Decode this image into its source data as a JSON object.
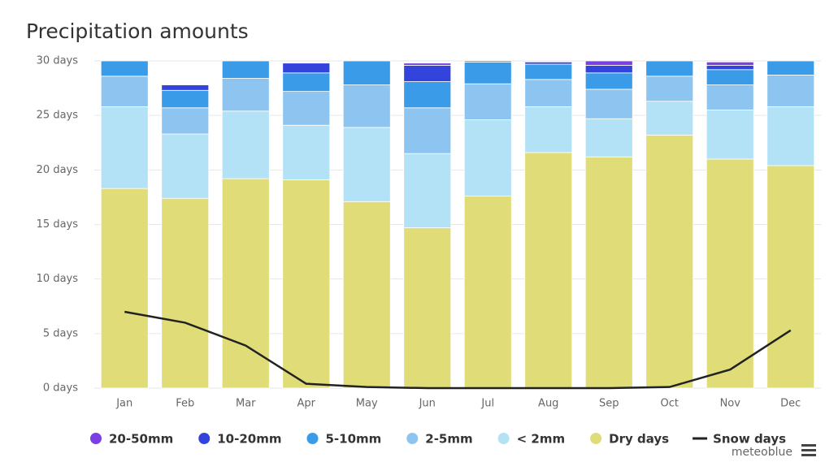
{
  "chart_data": {
    "type": "bar",
    "stacked": true,
    "title": "Precipitation amounts",
    "categories": [
      "Jan",
      "Feb",
      "Mar",
      "Apr",
      "May",
      "Jun",
      "Jul",
      "Aug",
      "Sep",
      "Oct",
      "Nov",
      "Dec"
    ],
    "series": [
      {
        "name": "20-50mm",
        "color": "#7b3fe4",
        "values": [
          0,
          0,
          0,
          0,
          0,
          0.2,
          0,
          0,
          0.4,
          0,
          0.3,
          0
        ]
      },
      {
        "name": "10-20mm",
        "color": "#3344dd",
        "values": [
          0,
          0.5,
          0,
          0.9,
          0,
          1.5,
          0.1,
          0.2,
          0.7,
          0,
          0.4,
          0
        ]
      },
      {
        "name": "5-10mm",
        "color": "#3a9be8",
        "values": [
          1.4,
          1.6,
          1.6,
          1.7,
          2.2,
          2.4,
          2.0,
          1.4,
          1.5,
          1.4,
          1.4,
          1.3
        ]
      },
      {
        "name": "2-5mm",
        "color": "#8ec5f0",
        "values": [
          2.8,
          2.4,
          3.0,
          3.1,
          3.9,
          4.2,
          3.3,
          2.5,
          2.7,
          2.3,
          2.3,
          2.9
        ]
      },
      {
        "name": "< 2mm",
        "color": "#b3e2f7",
        "values": [
          7.5,
          5.9,
          6.2,
          5.0,
          6.8,
          6.8,
          7.0,
          4.2,
          3.5,
          3.1,
          4.5,
          5.4
        ]
      },
      {
        "name": "Dry days",
        "color": "#e0dc78",
        "values": [
          18.3,
          17.4,
          19.2,
          19.1,
          17.1,
          14.7,
          17.6,
          21.6,
          21.2,
          23.2,
          21.0,
          20.4
        ]
      },
      {
        "name": "Snow days",
        "type": "line",
        "color": "#222222",
        "values": [
          7.0,
          6.0,
          3.9,
          0.4,
          0.1,
          0,
          0,
          0,
          0,
          0.1,
          1.7,
          5.3
        ]
      }
    ],
    "ylim": [
      0,
      30
    ],
    "yticks": [
      {
        "value": 0,
        "label": "0 days"
      },
      {
        "value": 5,
        "label": "5 days"
      },
      {
        "value": 10,
        "label": "10 days"
      },
      {
        "value": 15,
        "label": "15 days"
      },
      {
        "value": 20,
        "label": "20 days"
      },
      {
        "value": 25,
        "label": "25 days"
      },
      {
        "value": 30,
        "label": "30 days"
      }
    ],
    "credit": "meteoblue"
  }
}
